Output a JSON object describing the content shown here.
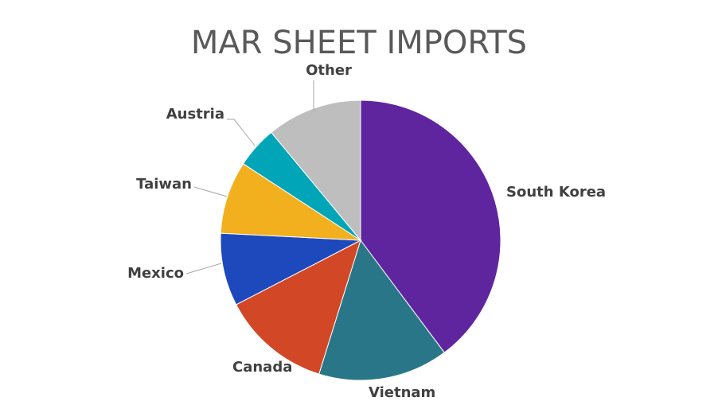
{
  "chart_data": {
    "type": "pie",
    "title": "MAR SHEET IMPORTS",
    "start_angle": "12 o'clock, clockwise",
    "legend": "none (data labels)",
    "slices": [
      {
        "label": "South Korea",
        "value": 39.8,
        "color": "#5F259F"
      },
      {
        "label": "Vietnam",
        "value": 15.0,
        "color": "#2A7689"
      },
      {
        "label": "Canada",
        "value": 12.6,
        "color": "#D24726"
      },
      {
        "label": "Mexico",
        "value": 8.4,
        "color": "#1E49BD"
      },
      {
        "label": "Taiwan",
        "value": 8.4,
        "color": "#F2B01E"
      },
      {
        "label": "Austria",
        "value": 4.8,
        "color": "#00A6B8"
      },
      {
        "label": "Other",
        "value": 11.0,
        "color": "#BEBEBE"
      }
    ]
  }
}
